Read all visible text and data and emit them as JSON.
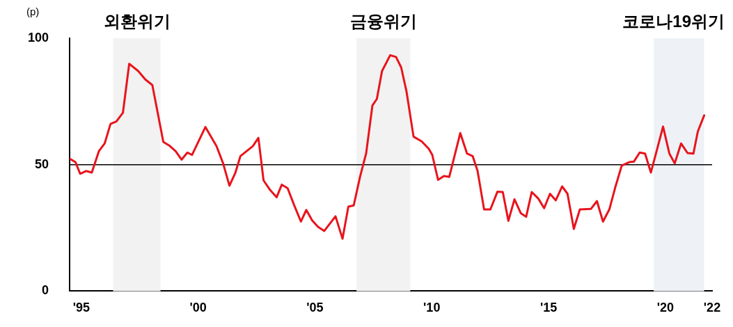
{
  "chart_data": {
    "type": "line",
    "ylabel": "(p)",
    "x": [
      1994.5,
      1994.75,
      1994.95,
      1995.2,
      1995.45,
      1995.75,
      1996.0,
      1996.25,
      1996.5,
      1996.78,
      1997.05,
      1997.44,
      1997.74,
      1998.04,
      1998.51,
      1998.79,
      1999.04,
      1999.29,
      1999.54,
      1999.74,
      2000.31,
      2000.79,
      2001.07,
      2001.34,
      2001.59,
      2001.81,
      2002.34,
      2002.58,
      2002.8,
      2003.08,
      2003.36,
      2003.58,
      2003.83,
      2004.11,
      2004.4,
      2004.63,
      2004.88,
      2005.13,
      2005.4,
      2005.88,
      2006.18,
      2006.43,
      2006.66,
      2006.93,
      2007.19,
      2007.46,
      2007.65,
      2007.87,
      2008.22,
      2008.47,
      2008.69,
      2008.92,
      2009.22,
      2009.57,
      2009.87,
      2010.02,
      2010.27,
      2010.52,
      2010.75,
      2011.22,
      2011.51,
      2011.75,
      2011.96,
      2012.24,
      2012.51,
      2012.81,
      2013.04,
      2013.28,
      2013.54,
      2013.81,
      2014.04,
      2014.28,
      2014.56,
      2014.81,
      2015.06,
      2015.31,
      2015.58,
      2015.81,
      2016.08,
      2016.34,
      2016.81,
      2017.07,
      2017.33,
      2017.6,
      2017.85,
      2018.13,
      2018.45,
      2018.65,
      2018.9,
      2019.13,
      2019.38,
      2019.65,
      2019.9,
      2020.17,
      2020.4,
      2020.67,
      2020.95,
      2021.2,
      2021.39,
      2021.66
    ],
    "series": [
      {
        "color": "#e8141c",
        "values": [
          52.4,
          51.0,
          46.4,
          47.5,
          46.9,
          55.3,
          58.4,
          66.1,
          67.1,
          70.5,
          89.9,
          87.0,
          83.7,
          81.5,
          59.0,
          57.4,
          55.3,
          52.0,
          54.8,
          53.9,
          64.9,
          57.3,
          50.5,
          41.7,
          46.7,
          53.4,
          57.3,
          60.6,
          43.8,
          40.0,
          37.1,
          42.1,
          40.7,
          34,
          27.5,
          32.1,
          28.0,
          25.4,
          23.8,
          29.6,
          20.7,
          33.4,
          33.9,
          45.2,
          54.4,
          73.4,
          76.0,
          87.0,
          93.3,
          92.6,
          88.5,
          78.9,
          61.1,
          59.2,
          56.3,
          53.9,
          44.0,
          45.5,
          45.2,
          62.5,
          54.4,
          53.4,
          47.6,
          32.3,
          32.3,
          39.3,
          39.2,
          27.8,
          36.3,
          30.8,
          29.4,
          39.2,
          36.6,
          32.8,
          38.5,
          35.9,
          41.4,
          38.5,
          24.6,
          32.3,
          32.5,
          35.6,
          27.5,
          32.3,
          40.9,
          49.6,
          51.0,
          51.2,
          54.8,
          54.4,
          46.9,
          56.3,
          65.1,
          54.4,
          50.5,
          58.4,
          54.6,
          54.4,
          63.2,
          69.5
        ]
      }
    ],
    "xlim": [
      1994.5,
      2022
    ],
    "xticks": [
      {
        "value": 1995,
        "label": "'95"
      },
      {
        "value": 2000,
        "label": "'00"
      },
      {
        "value": 2005,
        "label": "'05"
      },
      {
        "value": 2010,
        "label": "'10"
      },
      {
        "value": 2015,
        "label": "'15"
      },
      {
        "value": 2020,
        "label": "'20"
      },
      {
        "value": 2022,
        "label": "'22"
      }
    ],
    "ylim": [
      0,
      100
    ],
    "yticks": [
      0,
      50,
      100
    ],
    "ref_lines": [
      {
        "axis": "y",
        "value": 50,
        "color": "#000000"
      }
    ],
    "bands": [
      {
        "axis": "x",
        "from": 1996.36,
        "to": 1998.39,
        "label": "외환위기",
        "color": "#f2f2f2"
      },
      {
        "axis": "x",
        "from": 2006.78,
        "to": 2009.08,
        "label": "금융위기",
        "color": "#f2f2f2"
      },
      {
        "axis": "x",
        "from": 2019.5,
        "to": 2021.66,
        "label": "코로나19위기",
        "color": "#eef2f7"
      }
    ],
    "grid": false,
    "legend": false,
    "marker": "none",
    "line_style": "solid"
  }
}
